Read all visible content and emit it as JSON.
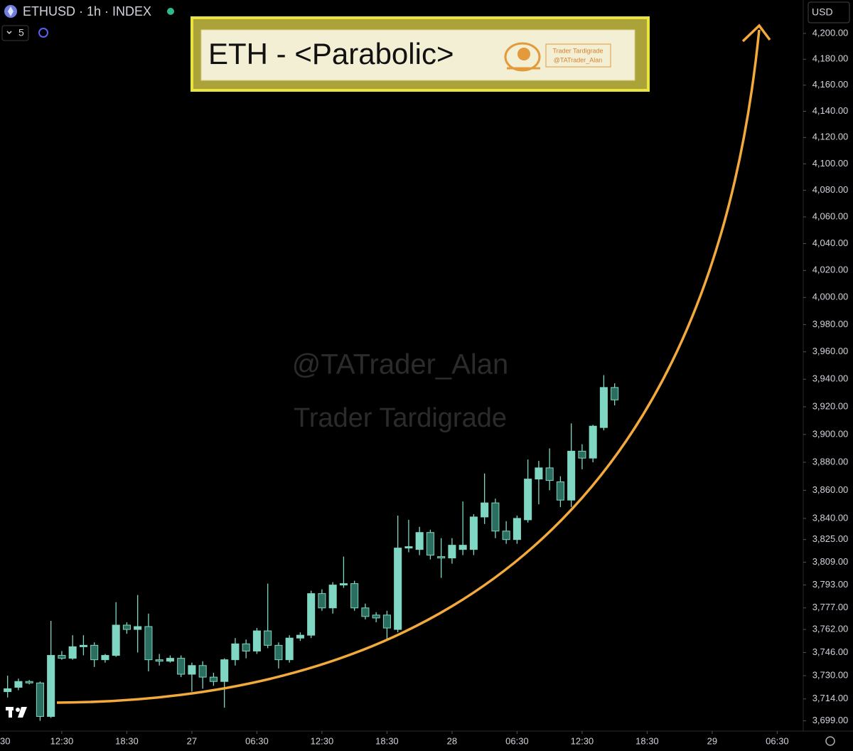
{
  "toolbar": {
    "symbol": "ETHUSD · 1h · INDEX",
    "indicator_count": 5,
    "currency": "USD"
  },
  "chart_data": {
    "type": "candlestick",
    "log_scale": true,
    "grid": false,
    "up_color": "#7fd6c3",
    "down_color": "#2b6e5f",
    "annotations": {
      "title": "ETH - <Parabolic>",
      "logo_lines": [
        "Trader Tardigrade",
        "@TATrader_Alan"
      ],
      "watermark": [
        "@TATrader_Alan",
        "Trader Tardigrade"
      ]
    },
    "open": [
      3719,
      3722,
      3726,
      3725,
      3702,
      3744,
      3742,
      3750,
      3751,
      3741,
      3744,
      3765,
      3762,
      3764,
      3741,
      3740,
      3742,
      3731,
      3737,
      3729,
      3726,
      3741,
      3752,
      3747,
      3761,
      3751,
      3741,
      3756,
      3758,
      3787,
      3777,
      3793,
      3794,
      3777,
      3772,
      3772,
      3762,
      3819,
      3818,
      3830,
      3813,
      3812,
      3818,
      3818,
      3841,
      3851,
      3831,
      3825,
      3839,
      3868,
      3876,
      3866,
      3853,
      3888,
      3883,
      3905,
      3934
    ],
    "high": [
      3730,
      3728,
      3727,
      3726,
      3768,
      3747,
      3758,
      3758,
      3753,
      3745,
      3781,
      3767,
      3786,
      3773,
      3745,
      3744,
      3744,
      3739,
      3740,
      3732,
      3742,
      3756,
      3755,
      3763,
      3794,
      3753,
      3758,
      3760,
      3789,
      3790,
      3795,
      3813,
      3796,
      3780,
      3774,
      3775,
      3842,
      3839,
      3834,
      3832,
      3826,
      3826,
      3852,
      3843,
      3872,
      3854,
      3838,
      3842,
      3882,
      3881,
      3890,
      3870,
      3908,
      3893,
      3907,
      3943,
      3937
    ],
    "low": [
      3715,
      3720,
      3724,
      3699,
      3701,
      3741,
      3741,
      3744,
      3736,
      3739,
      3743,
      3759,
      3746,
      3733,
      3737,
      3739,
      3729,
      3719,
      3721,
      3723,
      3708,
      3737,
      3742,
      3745,
      3749,
      3735,
      3739,
      3754,
      3756,
      3775,
      3773,
      3791,
      3775,
      3769,
      3767,
      3754,
      3760,
      3816,
      3814,
      3811,
      3798,
      3808,
      3814,
      3814,
      3836,
      3826,
      3822,
      3822,
      3837,
      3850,
      3860,
      3848,
      3848,
      3875,
      3880,
      3903,
      3921
    ],
    "close": [
      3721,
      3726,
      3725,
      3702,
      3744,
      3742,
      3750,
      3751,
      3741,
      3744,
      3765,
      3762,
      3764,
      3741,
      3740,
      3742,
      3731,
      3737,
      3729,
      3726,
      3741,
      3752,
      3747,
      3761,
      3751,
      3741,
      3756,
      3758,
      3787,
      3777,
      3793,
      3794,
      3777,
      3771,
      3770,
      3763,
      3819,
      3820,
      3830,
      3814,
      3812,
      3821,
      3821,
      3841,
      3851,
      3831,
      3825,
      3840,
      3868,
      3876,
      3867,
      3853,
      3888,
      3883,
      3906,
      3934,
      3925
    ],
    "xlim": [
      -0.7,
      73.4
    ],
    "xticks": [
      {
        "value": -1,
        "label": "30"
      },
      {
        "value": 5,
        "label": "12:30"
      },
      {
        "value": 11,
        "label": "18:30"
      },
      {
        "value": 17,
        "label": "27"
      },
      {
        "value": 23,
        "label": "06:30"
      },
      {
        "value": 29,
        "label": "12:30"
      },
      {
        "value": 35,
        "label": "18:30"
      },
      {
        "value": 41,
        "label": "28"
      },
      {
        "value": 47,
        "label": "06:30"
      },
      {
        "value": 53,
        "label": "12:30"
      },
      {
        "value": 59,
        "label": "18:30"
      },
      {
        "value": 65,
        "label": "29"
      },
      {
        "value": 71,
        "label": "06:30"
      }
    ],
    "ylim": [
      3692,
      4226
    ],
    "yticks": [
      {
        "value": 3699,
        "label": "3,699.00"
      },
      {
        "value": 3714,
        "label": "3,714.00"
      },
      {
        "value": 3730,
        "label": "3,730.00"
      },
      {
        "value": 3746,
        "label": "3,746.00"
      },
      {
        "value": 3762,
        "label": "3,762.00"
      },
      {
        "value": 3777,
        "label": "3,777.00"
      },
      {
        "value": 3793,
        "label": "3,793.00"
      },
      {
        "value": 3809,
        "label": "3,809.00"
      },
      {
        "value": 3825,
        "label": "3,825.00"
      },
      {
        "value": 3840,
        "label": "3,840.00"
      },
      {
        "value": 3860,
        "label": "3,860.00"
      },
      {
        "value": 3880,
        "label": "3,880.00"
      },
      {
        "value": 3900,
        "label": "3,900.00"
      },
      {
        "value": 3920,
        "label": "3,920.00"
      },
      {
        "value": 3940,
        "label": "3,940.00"
      },
      {
        "value": 3960,
        "label": "3,960.00"
      },
      {
        "value": 3980,
        "label": "3,980.00"
      },
      {
        "value": 4000,
        "label": "4,000.00"
      },
      {
        "value": 4020,
        "label": "4,020.00"
      },
      {
        "value": 4040,
        "label": "4,040.00"
      },
      {
        "value": 4060,
        "label": "4,060.00"
      },
      {
        "value": 4080,
        "label": "4,080.00"
      },
      {
        "value": 4100,
        "label": "4,100.00"
      },
      {
        "value": 4120,
        "label": "4,120.00"
      },
      {
        "value": 4140,
        "label": "4,140.00"
      },
      {
        "value": 4160,
        "label": "4,160.00"
      },
      {
        "value": 4180,
        "label": "4,180.00"
      },
      {
        "value": 4200,
        "label": "4,200.00"
      }
    ]
  }
}
